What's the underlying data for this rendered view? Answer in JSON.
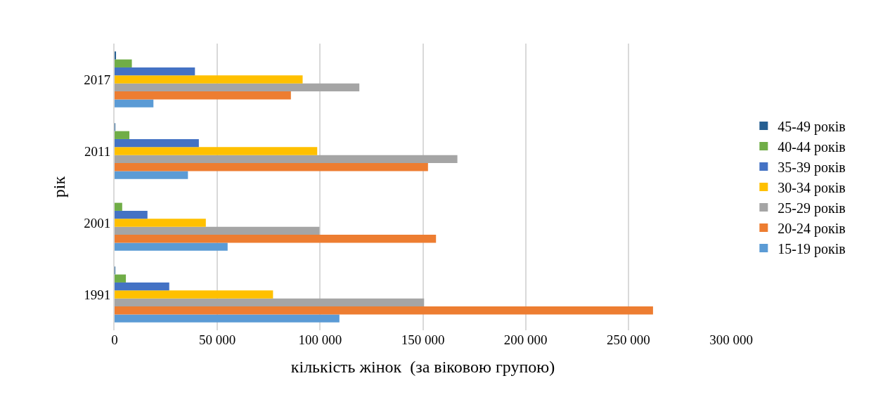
{
  "chart_data": {
    "type": "bar",
    "orientation": "horizontal",
    "xlabel": "кількість жінок  (за віковою групою)",
    "ylabel": "рік",
    "categories": [
      "2017",
      "2011",
      "2001",
      "1991"
    ],
    "series": [
      {
        "name": "15-19 років",
        "color": "#5b9bd5",
        "values": [
          18900,
          35700,
          55000,
          109400
        ]
      },
      {
        "name": "20-24 років",
        "color": "#ed7d31",
        "values": [
          85800,
          152500,
          156400,
          262000
        ]
      },
      {
        "name": "25-29 років",
        "color": "#a5a5a5",
        "values": [
          119100,
          166800,
          99700,
          150600
        ]
      },
      {
        "name": "30-34 років",
        "color": "#ffc000",
        "values": [
          91500,
          98600,
          44400,
          77100
        ]
      },
      {
        "name": "35-39 років",
        "color": "#4472c4",
        "values": [
          39100,
          41000,
          16000,
          26600
        ]
      },
      {
        "name": "40-44 років",
        "color": "#70ad47",
        "values": [
          8400,
          7200,
          3700,
          5500
        ]
      },
      {
        "name": "45-49 років",
        "color": "#255e91",
        "values": [
          700,
          300,
          0,
          300
        ]
      }
    ],
    "xlim": [
      0,
      300000
    ],
    "xticks": [
      0,
      {
        "value": 50000,
        "label": "50 000"
      },
      {
        "value": 100000,
        "label": "100 000"
      },
      {
        "value": 150000,
        "label": "150 000"
      },
      {
        "value": 200000,
        "label": "200 000"
      },
      {
        "value": 250000,
        "label": "250 000"
      },
      {
        "value": 300000,
        "label": "300 000"
      }
    ],
    "grid": "x",
    "legend": "right"
  }
}
